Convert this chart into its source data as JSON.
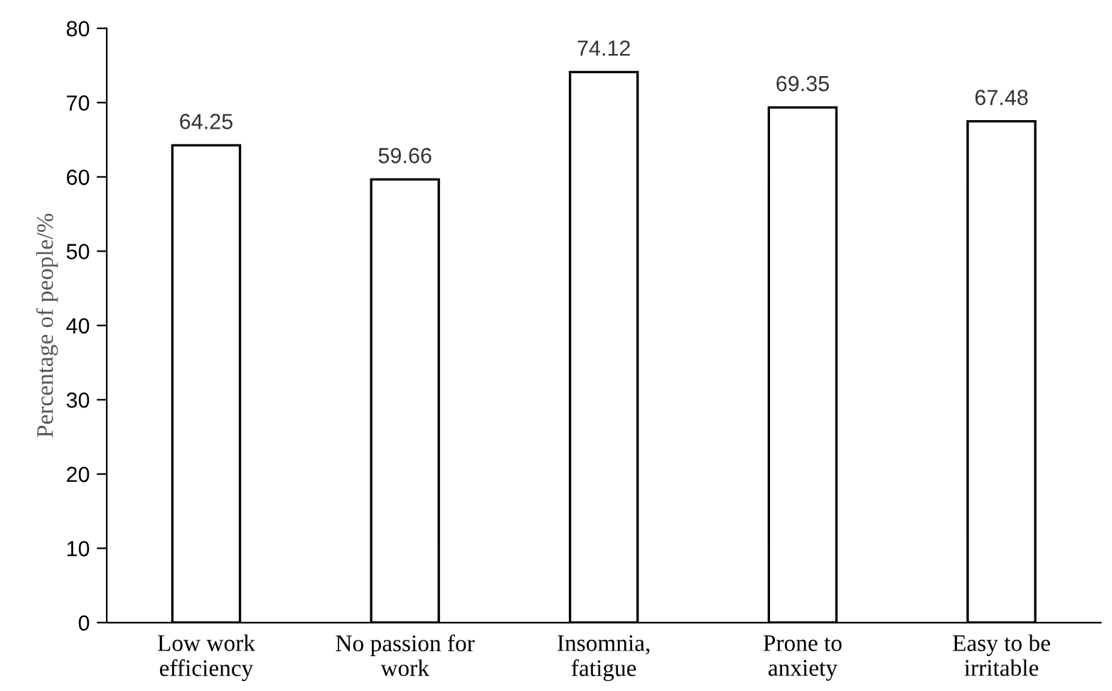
{
  "chart_data": {
    "type": "bar",
    "ylabel": "Percentage of people/%",
    "categories": [
      "Low work\nefficiency",
      "No passion for\nwork",
      "Insomnia,\nfatigue",
      "Prone to\nanxiety",
      "Easy to be\nirritable"
    ],
    "values": [
      64.25,
      59.66,
      74.12,
      69.35,
      67.48
    ],
    "color": "#ffffff",
    "ylim": [
      0,
      80
    ],
    "yticks": [
      0,
      10,
      20,
      30,
      40,
      50,
      60,
      70,
      80
    ],
    "data_labels": true
  }
}
